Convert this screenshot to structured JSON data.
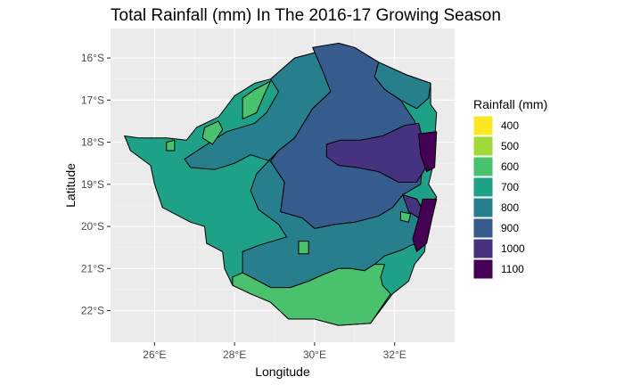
{
  "title": "Total Rainfall (mm) In The 2016-17 Growing Season",
  "x_axis": {
    "label": "Longitude",
    "ticks": [
      {
        "value": 26,
        "label": "26°E"
      },
      {
        "value": 28,
        "label": "28°E"
      },
      {
        "value": 30,
        "label": "30°E"
      },
      {
        "value": 32,
        "label": "32°E"
      }
    ]
  },
  "y_axis": {
    "label": "Latitude",
    "ticks": [
      {
        "value": -16,
        "label": "16°S"
      },
      {
        "value": -17,
        "label": "17°S"
      },
      {
        "value": -18,
        "label": "18°S"
      },
      {
        "value": -19,
        "label": "19°S"
      },
      {
        "value": -20,
        "label": "20°S"
      },
      {
        "value": -21,
        "label": "21°S"
      },
      {
        "value": -22,
        "label": "22°S"
      }
    ]
  },
  "legend": {
    "title": "Rainfall (mm)",
    "placement": "right",
    "items": [
      {
        "label": "400",
        "color": "#fde725"
      },
      {
        "label": "500",
        "color": "#a0da39"
      },
      {
        "label": "600",
        "color": "#4ac16d"
      },
      {
        "label": "700",
        "color": "#1fa187"
      },
      {
        "label": "800",
        "color": "#277f8e"
      },
      {
        "label": "900",
        "color": "#365c8d"
      },
      {
        "label": "1000",
        "color": "#46327e"
      },
      {
        "label": "1100",
        "color": "#440154"
      }
    ]
  },
  "chart_data": {
    "type": "map",
    "title": "Total Rainfall (mm) In The 2016-17 Growing Season",
    "xlabel": "Longitude",
    "ylabel": "Latitude",
    "xlim": [
      24.9,
      33.5
    ],
    "ylim": [
      -22.75,
      -15.3
    ],
    "grid": true,
    "legend_position": "right",
    "regions": [
      {
        "class": "700",
        "color": "#1fa187",
        "outline": [
          [
            32.9,
            -16.6
          ],
          [
            32.9,
            -17.1
          ],
          [
            33.05,
            -17.3
          ],
          [
            32.95,
            -18.6
          ],
          [
            32.85,
            -19.0
          ],
          [
            33.05,
            -19.3
          ],
          [
            32.85,
            -19.7
          ],
          [
            32.75,
            -20.6
          ],
          [
            32.5,
            -20.9
          ],
          [
            32.35,
            -21.3
          ],
          [
            31.95,
            -21.6
          ],
          [
            31.4,
            -22.3
          ],
          [
            30.6,
            -22.35
          ],
          [
            30.0,
            -22.2
          ],
          [
            29.35,
            -22.2
          ],
          [
            28.9,
            -21.8
          ],
          [
            28.4,
            -21.6
          ],
          [
            27.95,
            -21.4
          ],
          [
            27.75,
            -21.0
          ],
          [
            27.7,
            -20.6
          ],
          [
            27.3,
            -20.4
          ],
          [
            27.25,
            -20.0
          ],
          [
            26.9,
            -19.9
          ],
          [
            26.2,
            -19.55
          ],
          [
            26.0,
            -19.0
          ],
          [
            25.9,
            -18.55
          ],
          [
            25.4,
            -18.2
          ],
          [
            25.25,
            -17.85
          ],
          [
            25.6,
            -17.9
          ],
          [
            26.3,
            -17.9
          ],
          [
            26.8,
            -17.95
          ],
          [
            27.05,
            -17.65
          ],
          [
            27.6,
            -17.4
          ],
          [
            28.0,
            -16.9
          ],
          [
            28.5,
            -16.6
          ],
          [
            28.9,
            -16.5
          ],
          [
            29.5,
            -16.0
          ],
          [
            30.1,
            -15.85
          ],
          [
            30.6,
            -15.65
          ],
          [
            31.0,
            -15.75
          ],
          [
            31.6,
            -16.1
          ],
          [
            32.3,
            -16.4
          ],
          [
            32.9,
            -16.6
          ]
        ]
      },
      {
        "class": "800",
        "color": "#277f8e",
        "outline": [
          [
            28.9,
            -16.5
          ],
          [
            29.1,
            -16.8
          ],
          [
            28.8,
            -17.3
          ],
          [
            28.5,
            -17.55
          ],
          [
            27.8,
            -17.75
          ],
          [
            27.15,
            -18.15
          ],
          [
            26.75,
            -18.4
          ],
          [
            26.9,
            -18.6
          ],
          [
            27.5,
            -18.65
          ],
          [
            28.0,
            -18.5
          ],
          [
            28.4,
            -18.3
          ],
          [
            28.9,
            -18.45
          ],
          [
            29.25,
            -18.95
          ],
          [
            29.15,
            -19.65
          ],
          [
            29.7,
            -19.8
          ],
          [
            30.0,
            -20.05
          ],
          [
            30.5,
            -19.95
          ],
          [
            31.0,
            -19.9
          ],
          [
            31.6,
            -19.75
          ],
          [
            31.95,
            -19.55
          ],
          [
            32.2,
            -19.25
          ],
          [
            32.55,
            -19.35
          ],
          [
            32.75,
            -19.65
          ],
          [
            32.8,
            -19.95
          ],
          [
            32.6,
            -20.4
          ],
          [
            32.4,
            -20.45
          ],
          [
            32.2,
            -20.55
          ],
          [
            31.75,
            -20.7
          ],
          [
            31.5,
            -20.9
          ],
          [
            31.25,
            -21.05
          ],
          [
            30.9,
            -21.0
          ],
          [
            30.6,
            -21.0
          ],
          [
            30.2,
            -21.15
          ],
          [
            29.85,
            -21.3
          ],
          [
            29.4,
            -21.45
          ],
          [
            28.9,
            -21.45
          ],
          [
            28.5,
            -21.25
          ],
          [
            28.2,
            -21.1
          ],
          [
            28.2,
            -20.6
          ],
          [
            28.6,
            -20.45
          ],
          [
            29.3,
            -20.25
          ],
          [
            29.1,
            -19.95
          ],
          [
            28.6,
            -19.6
          ],
          [
            28.4,
            -19.15
          ],
          [
            28.55,
            -18.75
          ],
          [
            29.1,
            -18.2
          ],
          [
            29.5,
            -17.9
          ],
          [
            29.95,
            -17.2
          ],
          [
            30.4,
            -16.8
          ],
          [
            30.1,
            -15.85
          ],
          [
            29.5,
            -16.0
          ],
          [
            28.9,
            -16.5
          ]
        ]
      },
      {
        "class": "800",
        "color": "#277f8e",
        "outline": [
          [
            31.6,
            -16.1
          ],
          [
            32.3,
            -16.4
          ],
          [
            32.9,
            -16.6
          ],
          [
            32.85,
            -16.95
          ],
          [
            32.55,
            -17.2
          ],
          [
            32.15,
            -17.0
          ],
          [
            31.75,
            -16.75
          ],
          [
            31.5,
            -16.45
          ],
          [
            31.6,
            -16.1
          ]
        ]
      },
      {
        "class": "900",
        "color": "#365c8d",
        "outline": [
          [
            29.95,
            -15.75
          ],
          [
            30.6,
            -15.65
          ],
          [
            31.0,
            -15.75
          ],
          [
            31.6,
            -16.1
          ],
          [
            31.5,
            -16.45
          ],
          [
            31.75,
            -16.75
          ],
          [
            32.15,
            -17.0
          ],
          [
            32.5,
            -17.5
          ],
          [
            32.65,
            -18.0
          ],
          [
            32.7,
            -18.5
          ],
          [
            32.65,
            -19.0
          ],
          [
            32.2,
            -19.25
          ],
          [
            31.95,
            -19.55
          ],
          [
            31.6,
            -19.75
          ],
          [
            31.0,
            -19.9
          ],
          [
            30.5,
            -19.95
          ],
          [
            30.0,
            -20.05
          ],
          [
            29.7,
            -19.8
          ],
          [
            29.15,
            -19.65
          ],
          [
            29.25,
            -18.95
          ],
          [
            28.9,
            -18.45
          ],
          [
            29.1,
            -18.2
          ],
          [
            29.5,
            -17.9
          ],
          [
            29.95,
            -17.2
          ],
          [
            30.4,
            -16.8
          ],
          [
            30.2,
            -16.3
          ],
          [
            29.95,
            -15.75
          ]
        ]
      },
      {
        "class": "1000",
        "color": "#46327e",
        "outline": [
          [
            30.3,
            -18.05
          ],
          [
            30.65,
            -17.95
          ],
          [
            31.15,
            -17.95
          ],
          [
            31.7,
            -17.85
          ],
          [
            32.25,
            -17.6
          ],
          [
            32.6,
            -17.55
          ],
          [
            32.75,
            -18.1
          ],
          [
            32.75,
            -18.65
          ],
          [
            32.55,
            -18.95
          ],
          [
            32.1,
            -18.95
          ],
          [
            31.6,
            -18.7
          ],
          [
            31.05,
            -18.6
          ],
          [
            30.6,
            -18.55
          ],
          [
            30.3,
            -18.35
          ],
          [
            30.3,
            -18.05
          ]
        ]
      },
      {
        "class": "1000",
        "color": "#46327e",
        "outline": [
          [
            32.2,
            -19.25
          ],
          [
            32.55,
            -19.35
          ],
          [
            32.7,
            -19.6
          ],
          [
            32.6,
            -19.8
          ],
          [
            32.35,
            -19.65
          ],
          [
            32.2,
            -19.25
          ]
        ]
      },
      {
        "class": "1100",
        "color": "#440154",
        "outline": [
          [
            32.6,
            -17.8
          ],
          [
            33.05,
            -17.75
          ],
          [
            33.0,
            -18.6
          ],
          [
            32.8,
            -18.7
          ],
          [
            32.65,
            -18.3
          ],
          [
            32.6,
            -17.8
          ]
        ]
      },
      {
        "class": "1100",
        "color": "#440154",
        "outline": [
          [
            32.7,
            -19.35
          ],
          [
            33.05,
            -19.35
          ],
          [
            32.95,
            -19.75
          ],
          [
            32.8,
            -20.4
          ],
          [
            32.55,
            -20.6
          ],
          [
            32.45,
            -20.3
          ],
          [
            32.6,
            -19.8
          ],
          [
            32.7,
            -19.35
          ]
        ]
      },
      {
        "class": "600",
        "color": "#4ac16d",
        "outline": [
          [
            28.2,
            -21.1
          ],
          [
            28.5,
            -21.25
          ],
          [
            28.9,
            -21.45
          ],
          [
            29.4,
            -21.45
          ],
          [
            29.85,
            -21.3
          ],
          [
            30.2,
            -21.15
          ],
          [
            30.6,
            -21.0
          ],
          [
            30.9,
            -21.0
          ],
          [
            31.25,
            -21.05
          ],
          [
            31.5,
            -20.9
          ],
          [
            31.75,
            -20.9
          ],
          [
            31.65,
            -21.2
          ],
          [
            31.7,
            -21.4
          ],
          [
            31.9,
            -21.6
          ],
          [
            31.4,
            -22.3
          ],
          [
            30.6,
            -22.35
          ],
          [
            30.0,
            -22.2
          ],
          [
            29.35,
            -22.2
          ],
          [
            28.9,
            -21.8
          ],
          [
            28.4,
            -21.6
          ],
          [
            27.95,
            -21.4
          ],
          [
            27.95,
            -21.2
          ],
          [
            28.2,
            -21.1
          ]
        ]
      },
      {
        "class": "600",
        "color": "#4ac16d",
        "outline": [
          [
            28.2,
            -16.95
          ],
          [
            28.5,
            -16.75
          ],
          [
            28.9,
            -16.55
          ],
          [
            28.75,
            -16.85
          ],
          [
            28.55,
            -17.3
          ],
          [
            28.2,
            -17.45
          ],
          [
            28.2,
            -16.95
          ]
        ]
      },
      {
        "class": "600",
        "color": "#4ac16d",
        "outline": [
          [
            27.25,
            -17.65
          ],
          [
            27.6,
            -17.5
          ],
          [
            27.7,
            -17.7
          ],
          [
            27.45,
            -18.05
          ],
          [
            27.2,
            -17.9
          ],
          [
            27.25,
            -17.65
          ]
        ]
      },
      {
        "class": "600",
        "color": "#4ac16d",
        "outline": [
          [
            26.3,
            -18.0
          ],
          [
            26.5,
            -17.95
          ],
          [
            26.5,
            -18.2
          ],
          [
            26.3,
            -18.2
          ],
          [
            26.3,
            -18.0
          ]
        ]
      },
      {
        "class": "600",
        "color": "#4ac16d",
        "outline": [
          [
            29.6,
            -20.35
          ],
          [
            29.85,
            -20.35
          ],
          [
            29.85,
            -20.65
          ],
          [
            29.6,
            -20.65
          ],
          [
            29.6,
            -20.35
          ]
        ]
      },
      {
        "class": "600",
        "color": "#4ac16d",
        "outline": [
          [
            32.15,
            -19.65
          ],
          [
            32.4,
            -19.7
          ],
          [
            32.35,
            -19.9
          ],
          [
            32.15,
            -19.85
          ],
          [
            32.15,
            -19.65
          ]
        ]
      }
    ]
  }
}
